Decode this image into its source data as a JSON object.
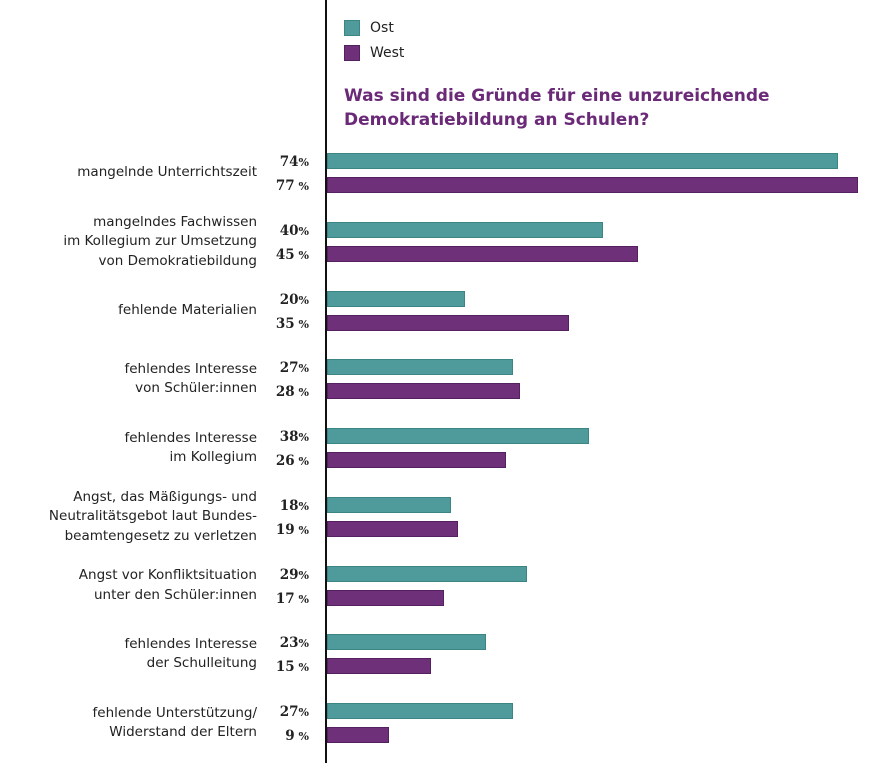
{
  "chart_data": {
    "type": "bar",
    "orientation": "horizontal",
    "title": "Was sind die Gründe für eine unzureichende Demokratiebildung an Schulen?",
    "title_lines": [
      "Was sind die Gründe für eine unzureichende",
      "Demokratiebildung an Schulen?"
    ],
    "xlabel": "",
    "ylabel": "",
    "xlim": [
      0,
      77
    ],
    "grid": false,
    "legend_position": "top",
    "unit": "%",
    "categories": [
      [
        "mangelnde Unterrichtszeit"
      ],
      [
        "mangelndes Fachwissen",
        "im Kollegium zur Umsetzung",
        "von Demokratiebildung"
      ],
      [
        "fehlende Materialien"
      ],
      [
        "fehlendes Interesse",
        "von Schüler:innen"
      ],
      [
        "fehlendes Interesse",
        "im Kollegium"
      ],
      [
        "Angst, das Mäßigungs- und",
        "Neutralitätsgebot laut Bundes-",
        "beamtengesetz zu verletzen"
      ],
      [
        "Angst vor Konfliktsituation",
        "unter den Schüler:innen"
      ],
      [
        "fehlendes Interesse",
        "der Schulleitung"
      ],
      [
        "fehlende Unterstützung/",
        "Widerstand der Eltern"
      ]
    ],
    "series": [
      {
        "name": "Ost",
        "color": "#4f9a9a",
        "border": "#3b8585",
        "values": [
          74,
          40,
          20,
          27,
          38,
          18,
          29,
          23,
          27
        ]
      },
      {
        "name": "West",
        "color": "#6e3079",
        "border": "#55205f",
        "values": [
          77,
          45,
          35,
          28,
          26,
          19,
          17,
          15,
          9
        ]
      }
    ],
    "value_suffix": "%"
  }
}
